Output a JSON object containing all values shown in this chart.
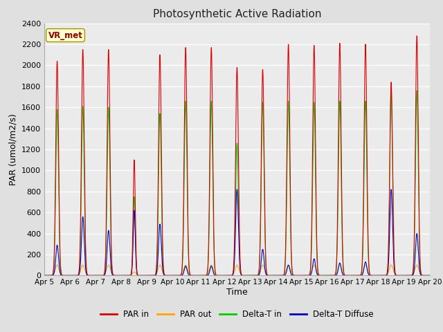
{
  "title": "Photosynthetic Active Radiation",
  "xlabel": "Time",
  "ylabel": "PAR (umol/m2/s)",
  "annotation": "VR_met",
  "ylim": [
    0,
    2400
  ],
  "yticks": [
    0,
    200,
    400,
    600,
    800,
    1000,
    1200,
    1400,
    1600,
    1800,
    2000,
    2200,
    2400
  ],
  "colors": {
    "PAR_in": "#dd0000",
    "PAR_out": "#ffa500",
    "Delta_T_in": "#00cc00",
    "Delta_T_Diffuse": "#0000cc"
  },
  "legend_labels": [
    "PAR in",
    "PAR out",
    "Delta-T in",
    "Delta-T Diffuse"
  ],
  "background_color": "#e0e0e0",
  "plot_bg_color": "#ebebeb",
  "x_tick_labels": [
    "Apr 5",
    "Apr 6",
    "Apr 7",
    "Apr 8",
    "Apr 9",
    "Apr 10",
    "Apr 11",
    "Apr 12",
    "Apr 13",
    "Apr 14",
    "Apr 15",
    "Apr 16",
    "Apr 17",
    "Apr 18",
    "Apr 19",
    "Apr 20"
  ],
  "days": 15,
  "points_per_day": 288,
  "day_peaks": {
    "PAR_in": [
      2040,
      2150,
      2150,
      1100,
      2100,
      2170,
      2170,
      1980,
      1960,
      2200,
      2190,
      2210,
      2200,
      1840,
      2280
    ],
    "PAR_out": [
      100,
      100,
      100,
      35,
      100,
      100,
      100,
      100,
      100,
      100,
      100,
      100,
      100,
      100,
      100
    ],
    "Delta_T_in": [
      1580,
      1610,
      1600,
      750,
      1540,
      1660,
      1660,
      1260,
      1650,
      1660,
      1650,
      1660,
      1660,
      1760,
      1760
    ],
    "Delta_T_Diffuse": [
      290,
      560,
      430,
      620,
      490,
      90,
      90,
      820,
      250,
      100,
      160,
      120,
      130,
      820,
      400
    ]
  },
  "day_widths": {
    "PAR_in": [
      0.13,
      0.13,
      0.13,
      0.1,
      0.13,
      0.13,
      0.13,
      0.13,
      0.13,
      0.13,
      0.13,
      0.13,
      0.13,
      0.13,
      0.13
    ],
    "PAR_out": [
      0.18,
      0.18,
      0.18,
      0.15,
      0.18,
      0.18,
      0.18,
      0.18,
      0.18,
      0.18,
      0.18,
      0.18,
      0.18,
      0.18,
      0.18
    ],
    "Delta_T_in": [
      0.13,
      0.13,
      0.13,
      0.1,
      0.13,
      0.13,
      0.13,
      0.13,
      0.13,
      0.13,
      0.13,
      0.13,
      0.13,
      0.13,
      0.13
    ],
    "Delta_T_Diffuse": [
      0.13,
      0.13,
      0.13,
      0.1,
      0.13,
      0.13,
      0.13,
      0.13,
      0.13,
      0.13,
      0.13,
      0.13,
      0.13,
      0.13,
      0.13
    ]
  }
}
